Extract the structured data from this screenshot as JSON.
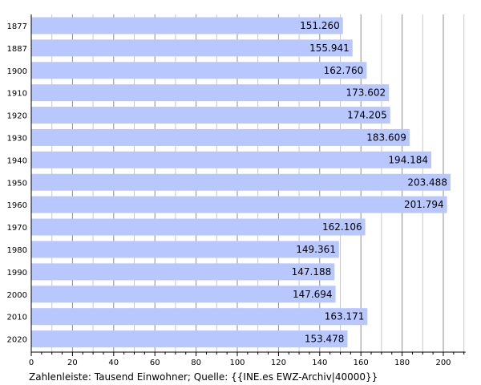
{
  "chart_data": {
    "type": "bar",
    "orientation": "horizontal",
    "categories": [
      "1877",
      "1887",
      "1900",
      "1910",
      "1920",
      "1930",
      "1940",
      "1950",
      "1960",
      "1970",
      "1980",
      "1990",
      "2000",
      "2010",
      "2020"
    ],
    "values": [
      151.26,
      155.941,
      162.76,
      173.602,
      174.205,
      183.609,
      194.184,
      203.488,
      201.794,
      162.106,
      149.361,
      147.188,
      147.694,
      163.171,
      153.478
    ],
    "value_labels": [
      "151.260",
      "155.941",
      "162.760",
      "173.602",
      "174.205",
      "183.609",
      "194.184",
      "203.488",
      "201.794",
      "162.106",
      "149.361",
      "147.188",
      "147.694",
      "163.171",
      "153.478"
    ],
    "x_ticks": [
      "0",
      "20",
      "40",
      "60",
      "80",
      "100",
      "120",
      "140",
      "160",
      "180",
      "200"
    ],
    "xlim": [
      0,
      210
    ],
    "grid": true,
    "colors": {
      "bar": "#b8c8ff",
      "grid_minor": "#c8c8c8",
      "grid_major": "#8c8c8c",
      "axis": "#000000"
    }
  },
  "caption": "Zahlenleiste: Tausend Einwohner; Quelle: {{INE.es EWZ-Archiv|40000}}"
}
